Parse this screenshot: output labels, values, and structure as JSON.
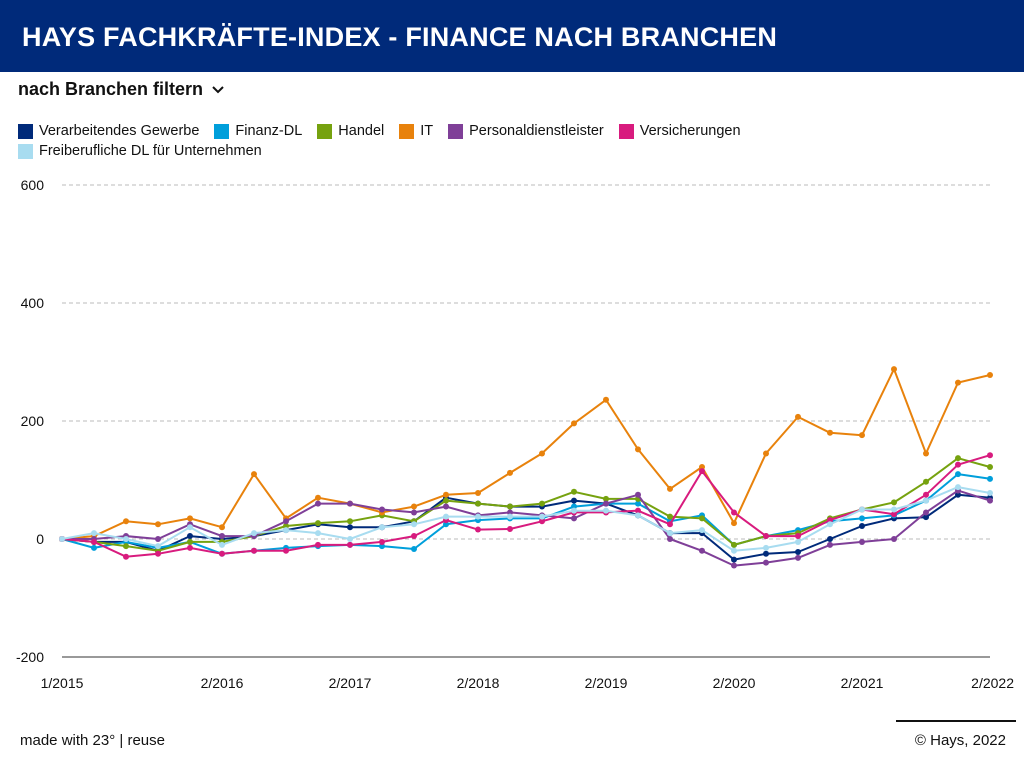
{
  "header": {
    "title": "HAYS FACHKRÄFTE-INDEX - FINANCE NACH BRANCHEN"
  },
  "filter": {
    "label": "nach Branchen filtern"
  },
  "footer": {
    "made_with": "made with 23°",
    "separator": "|",
    "reuse": "reuse",
    "copyright": "© Hays, 2022"
  },
  "chart_data": {
    "type": "line",
    "ylim": [
      -200,
      600
    ],
    "y_ticks": [
      600,
      400,
      200,
      0,
      -200
    ],
    "grid": true,
    "legend_placement": "top-left",
    "x_tick_labels": [
      "1/2015",
      "2/2016",
      "2/2017",
      "2/2018",
      "2/2019",
      "2/2020",
      "2/2021",
      "2/2022"
    ],
    "x_tick_index": [
      0,
      5,
      9,
      13,
      17,
      21,
      25,
      29
    ],
    "series": [
      {
        "name": "Verarbeitendes Gewerbe",
        "color": "#002a7a",
        "values": [
          0,
          -5,
          -5,
          -20,
          5,
          0,
          5,
          15,
          25,
          20,
          20,
          30,
          70,
          60,
          55,
          55,
          65,
          60,
          40,
          10,
          10,
          -35,
          -25,
          -22,
          0,
          22,
          35,
          37,
          75,
          70
        ]
      },
      {
        "name": "Finanz-DL",
        "color": "#009fdb",
        "values": [
          0,
          -15,
          -5,
          -15,
          -5,
          -25,
          -20,
          -15,
          -12,
          -10,
          -12,
          -17,
          25,
          32,
          35,
          35,
          55,
          60,
          60,
          30,
          40,
          -10,
          5,
          15,
          30,
          35,
          40,
          65,
          110,
          102
        ]
      },
      {
        "name": "Handel",
        "color": "#76a20f",
        "values": [
          0,
          -5,
          -12,
          -20,
          -5,
          -5,
          5,
          22,
          27,
          30,
          40,
          30,
          65,
          60,
          55,
          60,
          80,
          68,
          68,
          38,
          35,
          -10,
          5,
          10,
          35,
          50,
          62,
          97,
          137,
          122
        ]
      },
      {
        "name": "IT",
        "color": "#e8820c",
        "values": [
          0,
          5,
          30,
          25,
          35,
          20,
          110,
          35,
          70,
          60,
          45,
          55,
          75,
          78,
          112,
          145,
          196,
          236,
          152,
          85,
          122,
          27,
          145,
          207,
          180,
          176,
          288,
          145,
          265,
          278
        ]
      },
      {
        "name": "Personaldienstleister",
        "color": "#7f3f98",
        "values": [
          0,
          0,
          5,
          0,
          25,
          5,
          5,
          30,
          60,
          60,
          50,
          45,
          55,
          40,
          45,
          40,
          35,
          60,
          75,
          0,
          -20,
          -45,
          -40,
          -32,
          -10,
          -5,
          0,
          45,
          82,
          65
        ]
      },
      {
        "name": "Versicherungen",
        "color": "#d81b7e",
        "values": [
          0,
          -5,
          -30,
          -25,
          -15,
          -25,
          -20,
          -20,
          -10,
          -10,
          -5,
          5,
          32,
          16,
          17,
          30,
          45,
          45,
          48,
          25,
          115,
          45,
          5,
          5,
          32,
          50,
          42,
          75,
          126,
          142
        ]
      },
      {
        "name": "Freiberufliche DL für Unternehmen",
        "color": "#a8dcf0",
        "values": [
          0,
          10,
          0,
          -12,
          20,
          -10,
          10,
          15,
          10,
          0,
          20,
          25,
          38,
          38,
          38,
          38,
          48,
          48,
          40,
          10,
          15,
          -20,
          -15,
          -5,
          25,
          50,
          50,
          65,
          88,
          78
        ]
      }
    ]
  }
}
